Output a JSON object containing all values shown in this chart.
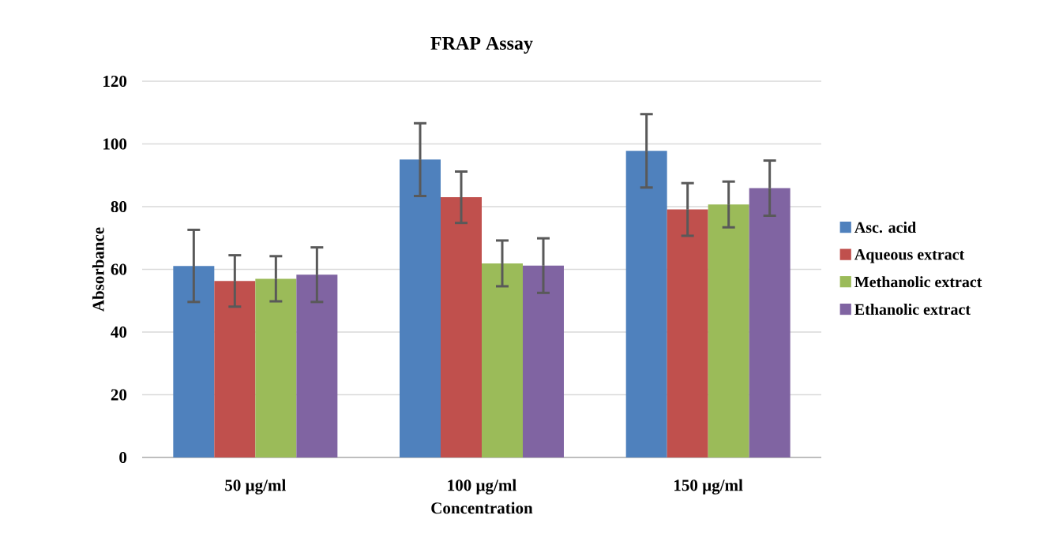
{
  "chart_data": {
    "type": "bar",
    "title": "FRAP Assay",
    "xlabel": "Concentration",
    "ylabel": "Absorbance",
    "categories": [
      "50 µg/ml",
      "100 µg/ml",
      "150 µg/ml"
    ],
    "series": [
      {
        "name": "Asc. acid",
        "color": "#4f81bd",
        "values": [
          61.1,
          95.0,
          97.8
        ],
        "errors": [
          11.5,
          11.6,
          11.7
        ]
      },
      {
        "name": "Aqueous extract",
        "color": "#c0504d",
        "values": [
          56.3,
          83.0,
          79.1
        ],
        "errors": [
          8.2,
          8.2,
          8.4
        ]
      },
      {
        "name": "Methanolic extract",
        "color": "#9bbb59",
        "values": [
          57.0,
          61.9,
          80.7
        ],
        "errors": [
          7.2,
          7.3,
          7.3
        ]
      },
      {
        "name": "Ethanolic extract",
        "color": "#8064a2",
        "values": [
          58.3,
          61.2,
          85.9
        ],
        "errors": [
          8.7,
          8.7,
          8.8
        ]
      }
    ],
    "ylim": [
      0,
      120
    ],
    "yticks": [
      0,
      20,
      40,
      60,
      80,
      100,
      120
    ],
    "grid": "y",
    "legend": "right"
  }
}
